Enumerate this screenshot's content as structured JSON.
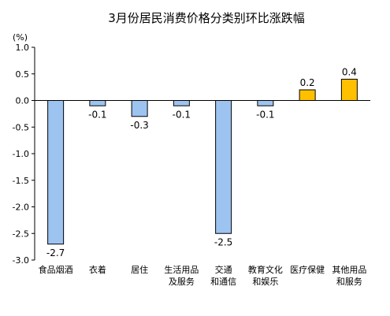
{
  "chart_data": {
    "type": "bar",
    "title": "3月份居民消费价格分类别环比涨跌幅",
    "ylabel": "(%)",
    "xlabel": "",
    "ylim": [
      -3.0,
      1.0
    ],
    "yticks": [
      "1.0",
      "0.5",
      "0.0",
      "-0.5",
      "-1.0",
      "-1.5",
      "-2.0",
      "-2.5",
      "-3.0"
    ],
    "categories": [
      [
        "食品烟酒"
      ],
      [
        "衣着"
      ],
      [
        "居住"
      ],
      [
        "生活用品",
        "及服务"
      ],
      [
        "交通",
        "和通信"
      ],
      [
        "教育文化",
        "和娱乐"
      ],
      [
        "医疗保健"
      ],
      [
        "其他用品",
        "和服务"
      ]
    ],
    "values": [
      -2.7,
      -0.1,
      -0.3,
      -0.1,
      -2.5,
      -0.1,
      0.2,
      0.4
    ],
    "data_labels": [
      "-2.7",
      "-0.1",
      "-0.3",
      "-0.1",
      "-2.5",
      "-0.1",
      "0.2",
      "0.4"
    ],
    "colors": {
      "negative": "#9DC3F0",
      "positive": "#FFC000",
      "edge": "#000000"
    },
    "grid": false,
    "legend": "none"
  }
}
